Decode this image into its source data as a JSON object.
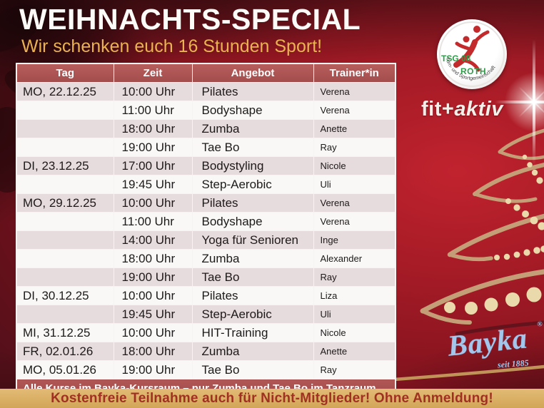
{
  "title": "WEIHNACHTS-SPECIAL",
  "subtitle": "Wir schenken euch 16 Stunden Sport!",
  "banner": "Kostenfreie Teilnahme auch für Nicht-Mitglieder! Ohne Anmeldung!",
  "schedule": {
    "columns": [
      "Tag",
      "Zeit",
      "Angebot",
      "Trainer*in"
    ],
    "rows": [
      {
        "tag": "MO, 22.12.25",
        "zeit": "10:00 Uhr",
        "angebot": "Pilates",
        "trainer": "Verena"
      },
      {
        "tag": "",
        "zeit": "11:00 Uhr",
        "angebot": "Bodyshape",
        "trainer": "Verena"
      },
      {
        "tag": "",
        "zeit": "18:00 Uhr",
        "angebot": "Zumba",
        "trainer": "Anette"
      },
      {
        "tag": "",
        "zeit": "19:00 Uhr",
        "angebot": "Tae Bo",
        "trainer": "Ray"
      },
      {
        "tag": "DI, 23.12.25",
        "zeit": "17:00 Uhr",
        "angebot": "Bodystyling",
        "trainer": "Nicole"
      },
      {
        "tag": "",
        "zeit": "19:45 Uhr",
        "angebot": "Step-Aerobic",
        "trainer": "Uli"
      },
      {
        "tag": "MO, 29.12.25",
        "zeit": "10:00 Uhr",
        "angebot": "Pilates",
        "trainer": "Verena"
      },
      {
        "tag": "",
        "zeit": "11:00 Uhr",
        "angebot": "Bodyshape",
        "trainer": "Verena"
      },
      {
        "tag": "",
        "zeit": "14:00 Uhr",
        "angebot": "Yoga für Senioren",
        "trainer": "Inge"
      },
      {
        "tag": "",
        "zeit": "18:00 Uhr",
        "angebot": "Zumba",
        "trainer": "Alexander"
      },
      {
        "tag": "",
        "zeit": "19:00 Uhr",
        "angebot": "Tae Bo",
        "trainer": "Ray"
      },
      {
        "tag": "DI, 30.12.25",
        "zeit": "10:00 Uhr",
        "angebot": "Pilates",
        "trainer": "Liza"
      },
      {
        "tag": "",
        "zeit": "19:45 Uhr",
        "angebot": "Step-Aerobic",
        "trainer": "Uli"
      },
      {
        "tag": "MI, 31.12.25",
        "zeit": "10:00 Uhr",
        "angebot": "HIT-Training",
        "trainer": "Nicole"
      },
      {
        "tag": "FR, 02.01.26",
        "zeit": "18:00 Uhr",
        "angebot": "Zumba",
        "trainer": "Anette"
      },
      {
        "tag": "MO, 05.01.26",
        "zeit": "19:00 Uhr",
        "angebot": "Tae Bo",
        "trainer": "Ray"
      }
    ],
    "note": "Alle Kurse im Bayka-Kursraum – nur Zumba und Tae Bo im Tanzraum."
  },
  "branding": {
    "tsg_badge": {
      "club": "TSG 08",
      "city": "ROTH",
      "arc_text": "Turn- und Sportgemeinschaft"
    },
    "fit_aktiv": {
      "prefix": "fit+",
      "suffix": "aktiv"
    },
    "bayka": {
      "name": "Bayka",
      "registered": "®",
      "since": "seit 1885"
    }
  },
  "colors": {
    "background_red": "#9c1824",
    "table_header": "#ad5254",
    "row_pink": "#e6dbdd",
    "row_white": "#faf7f7",
    "subtitle_gold": "#eab251",
    "banner_gold": "#d9ad62",
    "banner_text": "#a03122",
    "tree_gold": "#c49e76",
    "bead_cream": "#ead9ab",
    "bayka_blue": "#a2c6ec",
    "badge_green": "#2f9e49",
    "badge_red": "#c22a2c"
  }
}
